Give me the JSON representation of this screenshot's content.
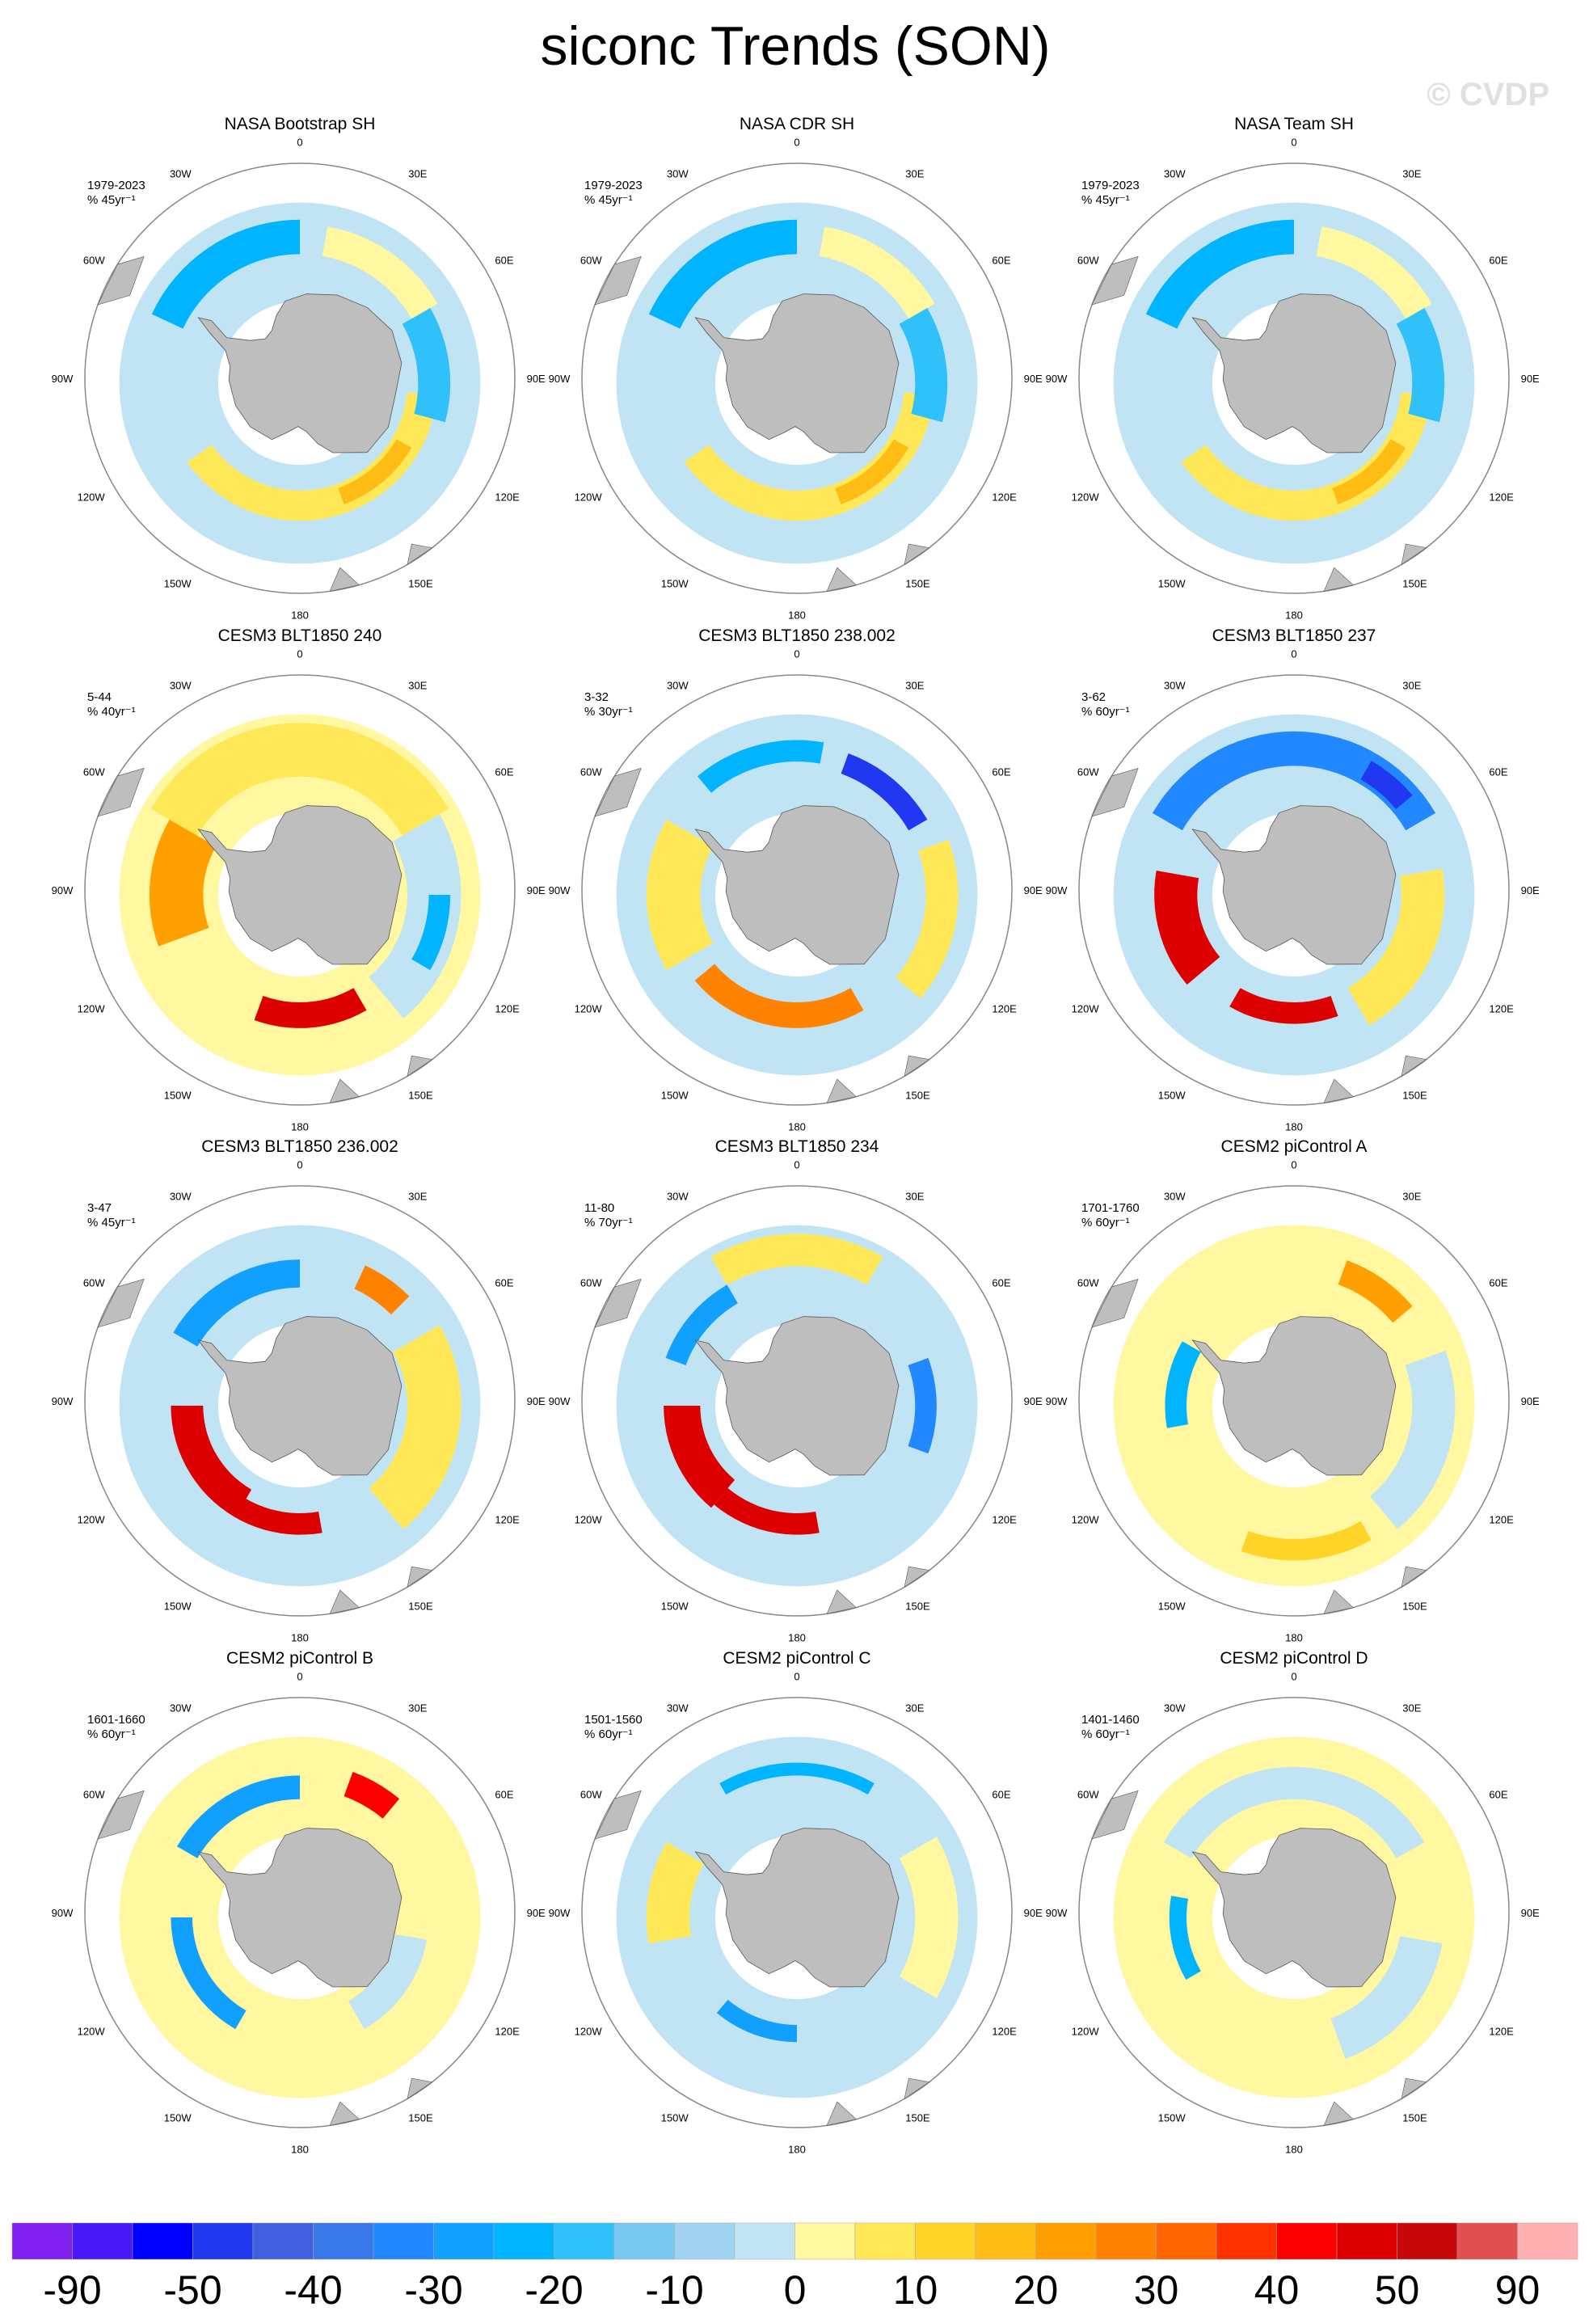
{
  "chart_data": {
    "type": "heatmap",
    "title": "siconc Trends (SON)",
    "watermark": "© CVDP",
    "projection": "south-polar stereographic",
    "longitude_labels": [
      "0",
      "30E",
      "60E",
      "90E",
      "120E",
      "150E",
      "180",
      "150W",
      "120W",
      "90W",
      "60W",
      "30W"
    ],
    "longitude_values": [
      0,
      30,
      60,
      90,
      120,
      150,
      180,
      -150,
      -120,
      -90,
      -60,
      -30
    ],
    "colorbar": {
      "colors": [
        "#8020f0",
        "#4818f8",
        "#0000ff",
        "#2038f0",
        "#4060e0",
        "#3878e8",
        "#2288ff",
        "#12a0ff",
        "#00b4ff",
        "#30c0fa",
        "#78c8f2",
        "#a0d4f0",
        "#c0e4f4",
        "#fff8a0",
        "#ffe858",
        "#ffd428",
        "#ffbc14",
        "#ffa000",
        "#ff8200",
        "#ff6400",
        "#ff3200",
        "#fc0000",
        "#dc0000",
        "#c80808",
        "#e05050",
        "#ffb0b0"
      ],
      "labels": [
        "-90",
        "-50",
        "-40",
        "-30",
        "-20",
        "-10",
        "0",
        "10",
        "20",
        "30",
        "40",
        "50",
        "90"
      ]
    },
    "land_color": "#bebebe",
    "panels": [
      {
        "title": "NASA Bootstrap SH",
        "period": "1979-2023",
        "units": "% 45yr⁻¹",
        "base": 12,
        "bands": [
          [
            95,
            235,
            0.5,
            0.64,
            14
          ],
          [
            -65,
            0,
            0.6,
            0.76,
            8
          ],
          [
            60,
            105,
            0.55,
            0.7,
            9
          ],
          [
            10,
            60,
            0.6,
            0.74,
            13
          ],
          [
            120,
            160,
            0.52,
            0.6,
            16
          ]
        ]
      },
      {
        "title": "NASA CDR SH",
        "period": "1979-2023",
        "units": "% 45yr⁻¹",
        "base": 12,
        "bands": [
          [
            95,
            235,
            0.5,
            0.64,
            14
          ],
          [
            -65,
            0,
            0.6,
            0.76,
            8
          ],
          [
            60,
            105,
            0.55,
            0.7,
            9
          ],
          [
            10,
            60,
            0.6,
            0.74,
            13
          ],
          [
            120,
            160,
            0.52,
            0.6,
            16
          ]
        ]
      },
      {
        "title": "NASA Team SH",
        "period": "1979-2023",
        "units": "% 45yr⁻¹",
        "base": 12,
        "bands": [
          [
            95,
            235,
            0.5,
            0.64,
            14
          ],
          [
            -65,
            0,
            0.6,
            0.76,
            8
          ],
          [
            60,
            105,
            0.55,
            0.7,
            9
          ],
          [
            10,
            60,
            0.6,
            0.74,
            13
          ],
          [
            120,
            160,
            0.52,
            0.6,
            16
          ]
        ]
      },
      {
        "title": "CESM3 BLT1850 240",
        "period": "5-44",
        "units": "% 40yr⁻¹",
        "base": 13,
        "bands": [
          [
            -60,
            60,
            0.55,
            0.8,
            14
          ],
          [
            -110,
            -60,
            0.45,
            0.7,
            17
          ],
          [
            150,
            200,
            0.5,
            0.62,
            22
          ],
          [
            60,
            140,
            0.5,
            0.75,
            12
          ],
          [
            90,
            120,
            0.6,
            0.7,
            8
          ]
        ]
      },
      {
        "title": "CESM3 BLT1850 238.002",
        "period": "3-32",
        "units": "% 30yr⁻¹",
        "base": 12,
        "bands": [
          [
            -120,
            -60,
            0.45,
            0.7,
            14
          ],
          [
            150,
            230,
            0.5,
            0.62,
            18
          ],
          [
            20,
            60,
            0.6,
            0.7,
            3
          ],
          [
            70,
            130,
            0.6,
            0.75,
            14
          ],
          [
            -40,
            10,
            0.62,
            0.72,
            8
          ]
        ]
      },
      {
        "title": "CESM3 BLT1850 237",
        "period": "3-62",
        "units": "% 60yr⁻¹",
        "base": 12,
        "bands": [
          [
            -60,
            60,
            0.6,
            0.76,
            6
          ],
          [
            30,
            50,
            0.62,
            0.72,
            3
          ],
          [
            -130,
            -80,
            0.45,
            0.65,
            22
          ],
          [
            160,
            210,
            0.5,
            0.6,
            22
          ],
          [
            80,
            150,
            0.5,
            0.7,
            14
          ]
        ]
      },
      {
        "title": "CESM3 BLT1850 236.002",
        "period": "3-47",
        "units": "% 45yr⁻¹",
        "base": 12,
        "bands": [
          [
            -150,
            -90,
            0.45,
            0.6,
            22
          ],
          [
            170,
            215,
            0.5,
            0.6,
            22
          ],
          [
            60,
            140,
            0.5,
            0.75,
            14
          ],
          [
            25,
            45,
            0.6,
            0.72,
            18
          ],
          [
            -60,
            0,
            0.55,
            0.68,
            7
          ]
        ]
      },
      {
        "title": "CESM3 BLT1850 234",
        "period": "11-80",
        "units": "% 70yr⁻¹",
        "base": 12,
        "bands": [
          [
            -140,
            -90,
            0.45,
            0.62,
            22
          ],
          [
            170,
            220,
            0.5,
            0.6,
            22
          ],
          [
            70,
            110,
            0.55,
            0.65,
            6
          ],
          [
            -30,
            30,
            0.65,
            0.8,
            14
          ],
          [
            -70,
            -30,
            0.55,
            0.65,
            7
          ]
        ]
      },
      {
        "title": "CESM2 piControl A",
        "period": "1701-1760",
        "units": "% 60yr⁻¹",
        "base": 13,
        "bands": [
          [
            20,
            50,
            0.6,
            0.72,
            17
          ],
          [
            -100,
            -60,
            0.5,
            0.6,
            8
          ],
          [
            150,
            200,
            0.62,
            0.72,
            15
          ],
          [
            70,
            140,
            0.55,
            0.75,
            12
          ]
        ]
      },
      {
        "title": "CESM2 piControl B",
        "period": "1601-1660",
        "units": "% 60yr⁻¹",
        "base": 13,
        "bands": [
          [
            20,
            40,
            0.6,
            0.72,
            21
          ],
          [
            -60,
            0,
            0.55,
            0.66,
            7
          ],
          [
            -150,
            -90,
            0.5,
            0.6,
            7
          ],
          [
            100,
            150,
            0.45,
            0.6,
            12
          ]
        ]
      },
      {
        "title": "CESM2 piControl C",
        "period": "1501-1560",
        "units": "% 60yr⁻¹",
        "base": 12,
        "bands": [
          [
            -100,
            -60,
            0.5,
            0.7,
            14
          ],
          [
            180,
            220,
            0.5,
            0.58,
            7
          ],
          [
            60,
            120,
            0.55,
            0.75,
            13
          ],
          [
            -30,
            30,
            0.66,
            0.72,
            8
          ]
        ]
      },
      {
        "title": "CESM2 piControl D",
        "period": "1401-1460",
        "units": "% 60yr⁻¹",
        "base": 13,
        "bands": [
          [
            -60,
            60,
            0.55,
            0.7,
            12
          ],
          [
            -120,
            -80,
            0.5,
            0.58,
            8
          ],
          [
            100,
            160,
            0.5,
            0.7,
            12
          ]
        ]
      }
    ]
  }
}
